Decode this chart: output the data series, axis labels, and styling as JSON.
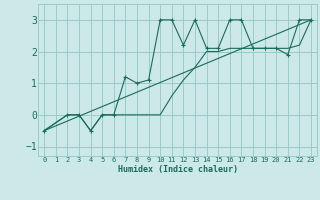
{
  "xlabel": "Humidex (Indice chaleur)",
  "ylabel": "",
  "xlim": [
    -0.5,
    23.5
  ],
  "ylim": [
    -1.3,
    3.5
  ],
  "yticks": [
    -1,
    0,
    1,
    2,
    3
  ],
  "xticks": [
    0,
    1,
    2,
    3,
    4,
    5,
    6,
    7,
    8,
    9,
    10,
    11,
    12,
    13,
    14,
    15,
    16,
    17,
    18,
    19,
    20,
    21,
    22,
    23
  ],
  "bg_color": "#cce8e8",
  "grid_color": "#99cccc",
  "line_color": "#1a6b5a",
  "lines": [
    {
      "x": [
        0,
        2,
        3,
        4,
        5,
        6,
        7,
        8,
        9,
        10,
        11,
        12,
        13,
        14,
        15,
        16,
        17,
        18,
        19,
        20,
        21,
        22,
        23
      ],
      "y": [
        -0.5,
        0.0,
        0.0,
        -0.5,
        0.0,
        0.0,
        1.2,
        1.0,
        1.1,
        3.0,
        3.0,
        2.2,
        3.0,
        2.1,
        2.1,
        3.0,
        3.0,
        2.1,
        2.1,
        2.1,
        1.9,
        3.0,
        3.0
      ],
      "marker": "+"
    },
    {
      "x": [
        0,
        2,
        3,
        4,
        5,
        6,
        7,
        8,
        9,
        10,
        11,
        12,
        13,
        14,
        15,
        16,
        17,
        18,
        19,
        20,
        21,
        22,
        23
      ],
      "y": [
        -0.5,
        0.0,
        0.0,
        -0.5,
        0.0,
        0.0,
        0.0,
        0.0,
        0.0,
        0.0,
        0.6,
        1.1,
        1.5,
        2.0,
        2.0,
        2.1,
        2.1,
        2.1,
        2.1,
        2.1,
        2.1,
        2.2,
        3.0
      ],
      "marker": null
    },
    {
      "x": [
        0,
        23
      ],
      "y": [
        -0.5,
        3.0
      ],
      "marker": null
    }
  ]
}
